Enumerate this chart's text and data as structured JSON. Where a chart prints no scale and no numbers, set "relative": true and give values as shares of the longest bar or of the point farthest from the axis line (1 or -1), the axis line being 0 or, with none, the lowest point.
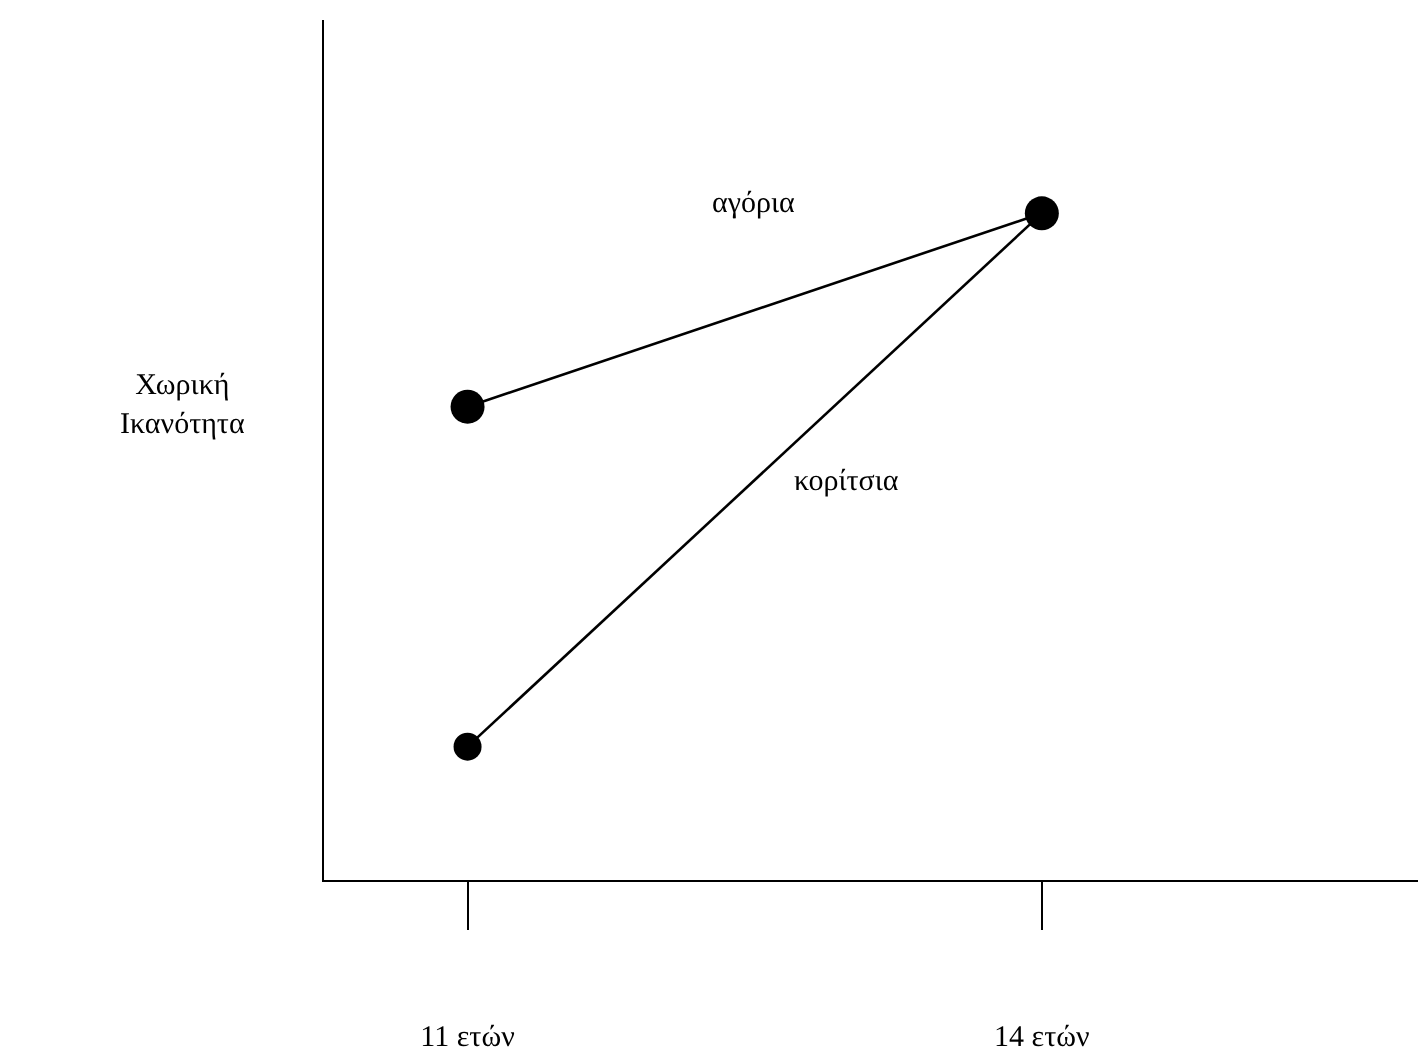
{
  "chart_data": {
    "type": "line",
    "relative": true,
    "ylabel": "Χωρική\nΙκανότητα",
    "categories": [
      "11 ετών",
      "14 ετών"
    ],
    "series": [
      {
        "name": "αγόρια",
        "color": "#000000",
        "values": [
          0.71,
          1
        ]
      },
      {
        "name": "κορίτσια",
        "color": "#000000",
        "values": [
          0.2,
          1
        ]
      }
    ],
    "marker": "circle",
    "line_style": "solid",
    "legend": false
  }
}
